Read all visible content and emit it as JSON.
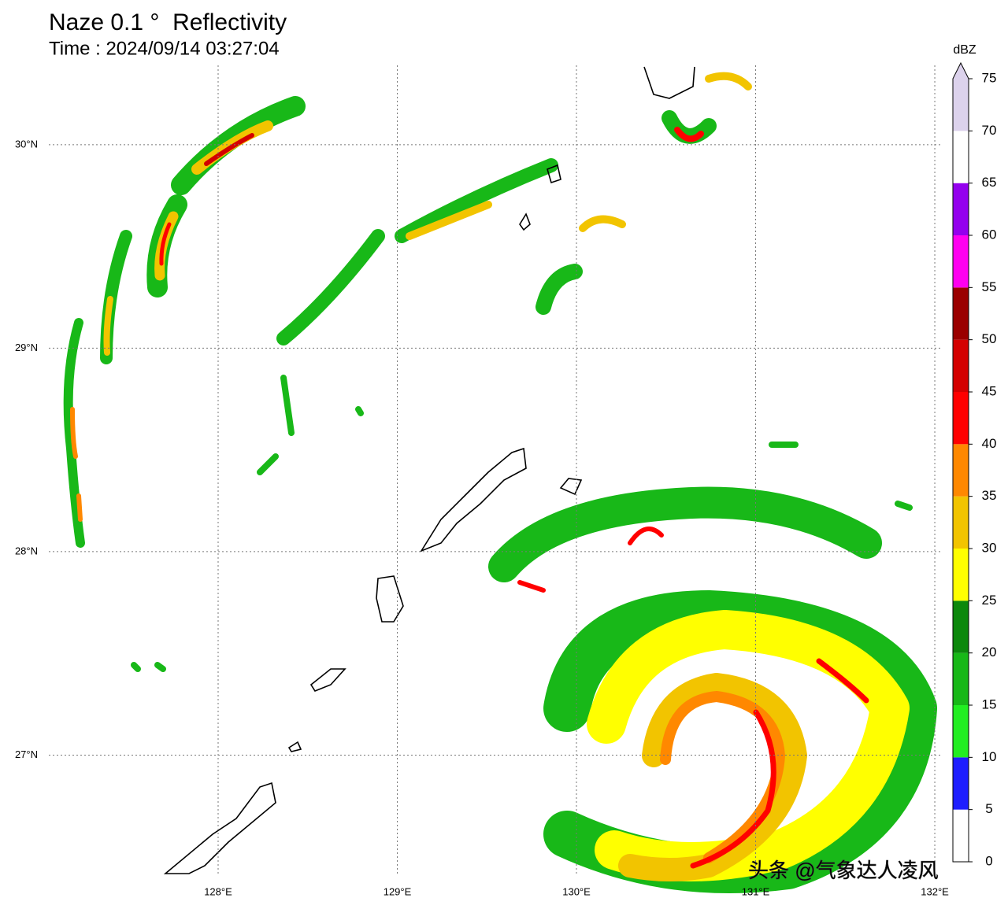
{
  "map": {
    "title": "Naze 0.1 °  Reflectivity",
    "time": "Time : 2024/09/14 03:27:04",
    "xlim": [
      127.055,
      132.035
    ],
    "ylim": [
      26.41,
      30.39
    ],
    "xticks": [
      {
        "value": 128,
        "label": "128°E"
      },
      {
        "value": 129,
        "label": "129°E"
      },
      {
        "value": 130,
        "label": "130°E"
      },
      {
        "value": 131,
        "label": "131°E"
      },
      {
        "value": 132,
        "label": "132°E"
      }
    ],
    "yticks": [
      {
        "value": 27,
        "label": "27°N"
      },
      {
        "value": 28,
        "label": "28°N"
      },
      {
        "value": 29,
        "label": "29°N"
      },
      {
        "value": 30,
        "label": "30°N"
      }
    ],
    "grid": true,
    "colorbar": {
      "label": "dBZ",
      "ticks": [
        0,
        5,
        10,
        15,
        20,
        25,
        30,
        35,
        40,
        45,
        50,
        55,
        60,
        65,
        70,
        75
      ],
      "colors": [
        "#ffffff",
        "#1e1eff",
        "#22ee22",
        "#18b818",
        "#0c880c",
        "#ffff00",
        "#f2c400",
        "#ff8800",
        "#ff0000",
        "#d40000",
        "#9a0000",
        "#ff00f0",
        "#9400ee",
        "#ffffff",
        "#dcd2ec"
      ]
    },
    "watermark": "头条 @气象达人凌风"
  }
}
